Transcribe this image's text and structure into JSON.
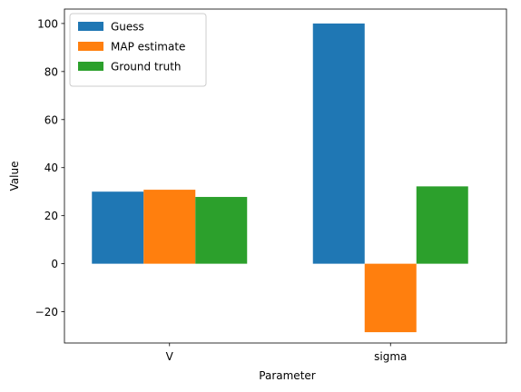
{
  "chart_data": {
    "type": "bar",
    "title": "",
    "xlabel": "Parameter",
    "ylabel": "Value",
    "categories": [
      "V",
      "sigma"
    ],
    "series": [
      {
        "name": "Guess",
        "color": "#1f77b4",
        "values": [
          30,
          100
        ]
      },
      {
        "name": "MAP estimate",
        "color": "#ff7f0e",
        "values": [
          30.8,
          -28.5
        ]
      },
      {
        "name": "Ground truth",
        "color": "#2ca02c",
        "values": [
          27.8,
          32.2
        ]
      }
    ],
    "ylim": [
      -33,
      106
    ],
    "yticks": [
      -20,
      0,
      20,
      40,
      60,
      80,
      100
    ],
    "ytick_labels": [
      "−20",
      "0",
      "20",
      "40",
      "60",
      "80",
      "100"
    ],
    "grid": false,
    "legend_position": "top-left"
  }
}
